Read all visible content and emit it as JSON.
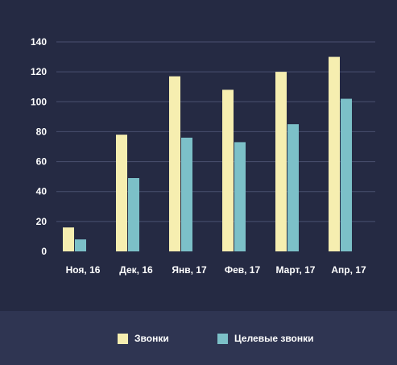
{
  "chart_data": {
    "type": "bar",
    "categories": [
      "Ноя, 16",
      "Дек, 16",
      "Янв, 17",
      "Фев, 17",
      "Март, 17",
      "Апр, 17"
    ],
    "series": [
      {
        "name": "Звонки",
        "values": [
          16,
          78,
          117,
          108,
          120,
          130
        ],
        "color": "#f6eeb0"
      },
      {
        "name": "Целевые звонки",
        "values": [
          8,
          49,
          76,
          73,
          85,
          102
        ],
        "color": "#7cc0c8"
      }
    ],
    "y_ticks": [
      0,
      20,
      40,
      60,
      80,
      100,
      120,
      140
    ],
    "ylim": [
      0,
      140
    ],
    "grid": true,
    "legend_position": "bottom"
  },
  "colors": {
    "background": "#252a43",
    "legend_background": "#2f3552",
    "gridline": "#4a5070",
    "text": "#ffffff"
  }
}
